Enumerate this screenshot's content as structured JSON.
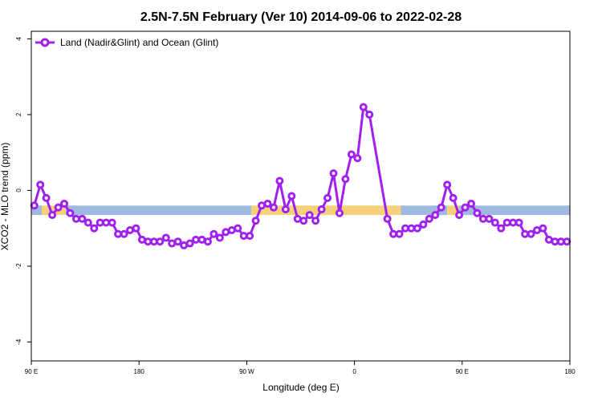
{
  "chart_data": {
    "type": "line",
    "title": "2.5N-7.5N February (Ver 10)   2014-09-06 to 2022-02-28",
    "xlabel": "Longitude (deg E)",
    "ylabel": "XCO2 - MLO trend (ppm)",
    "xlim": [
      90,
      450
    ],
    "ylim": [
      -4.5,
      4.2
    ],
    "x_ticks": [
      90,
      162,
      234,
      306,
      378,
      450
    ],
    "x_tick_labels": [
      "90 E",
      "180",
      "90 W",
      "0",
      "90 E",
      "180"
    ],
    "y_ticks": [
      -4,
      -2,
      0,
      2,
      4
    ],
    "y_tick_labels": [
      "-4",
      "-2",
      "0",
      "2",
      "4"
    ],
    "grid": false,
    "legend_position": "top-left",
    "series": [
      {
        "name": "Land (Nadir&Glint) and Ocean (Glint)",
        "color": "#a020f0",
        "x": [
          92,
          96,
          100,
          104,
          108,
          112,
          116,
          120,
          124,
          128,
          132,
          136,
          140,
          144,
          148,
          152,
          156,
          160,
          164,
          168,
          172,
          176,
          180,
          184,
          188,
          192,
          196,
          200,
          204,
          208,
          212,
          216,
          220,
          224,
          228,
          232,
          236,
          240,
          244,
          248,
          252,
          256,
          260,
          264,
          268,
          272,
          276,
          280,
          284,
          288,
          292,
          296,
          300,
          304,
          308,
          312,
          316,
          328,
          332,
          336,
          340,
          344,
          348,
          352,
          356,
          360,
          364,
          368,
          372,
          376,
          380,
          384,
          388,
          392,
          396,
          400,
          404,
          408,
          412,
          416,
          420,
          424,
          428,
          432,
          436,
          440,
          444,
          448
        ],
        "values": [
          -0.4,
          0.15,
          -0.2,
          -0.65,
          -0.45,
          -0.35,
          -0.6,
          -0.75,
          -0.75,
          -0.85,
          -1.0,
          -0.85,
          -0.85,
          -0.85,
          -1.15,
          -1.15,
          -1.05,
          -1.0,
          -1.3,
          -1.35,
          -1.35,
          -1.35,
          -1.25,
          -1.4,
          -1.35,
          -1.45,
          -1.4,
          -1.3,
          -1.3,
          -1.35,
          -1.15,
          -1.25,
          -1.1,
          -1.05,
          -1.0,
          -1.2,
          -1.2,
          -0.8,
          -0.4,
          -0.35,
          -0.45,
          0.25,
          -0.5,
          -0.15,
          -0.75,
          -0.8,
          -0.65,
          -0.8,
          -0.5,
          -0.2,
          0.45,
          -0.6,
          0.3,
          0.95,
          0.85,
          2.2,
          2.0,
          -0.75,
          -1.15,
          -1.15,
          -1.0,
          -1.0,
          -1.0,
          -0.9,
          -0.75,
          -0.65,
          -0.45,
          0.15,
          -0.2,
          -0.65,
          -0.45,
          -0.35,
          -0.6,
          -0.75,
          -0.75,
          -0.85,
          -1.0,
          -0.85,
          -0.85,
          -0.85,
          -1.15,
          -1.15,
          -1.05,
          -1.0,
          -1.3,
          -1.35,
          -1.35,
          -1.35
        ]
      }
    ],
    "background_band": {
      "y_range": [
        -0.65,
        -0.4
      ],
      "segments": [
        {
          "x0": 90,
          "x1": 97,
          "color": "#a0b9e0"
        },
        {
          "x0": 97,
          "x1": 113,
          "color": "#f5d27a"
        },
        {
          "x0": 113,
          "x1": 237,
          "color": "#a0b9e0"
        },
        {
          "x0": 237,
          "x1": 337,
          "color": "#f5d27a"
        },
        {
          "x0": 337,
          "x1": 368,
          "color": "#a0b9e0"
        },
        {
          "x0": 368,
          "x1": 376,
          "color": "#f5d27a"
        },
        {
          "x0": 376,
          "x1": 450,
          "color": "#a0b9e0"
        }
      ]
    }
  }
}
